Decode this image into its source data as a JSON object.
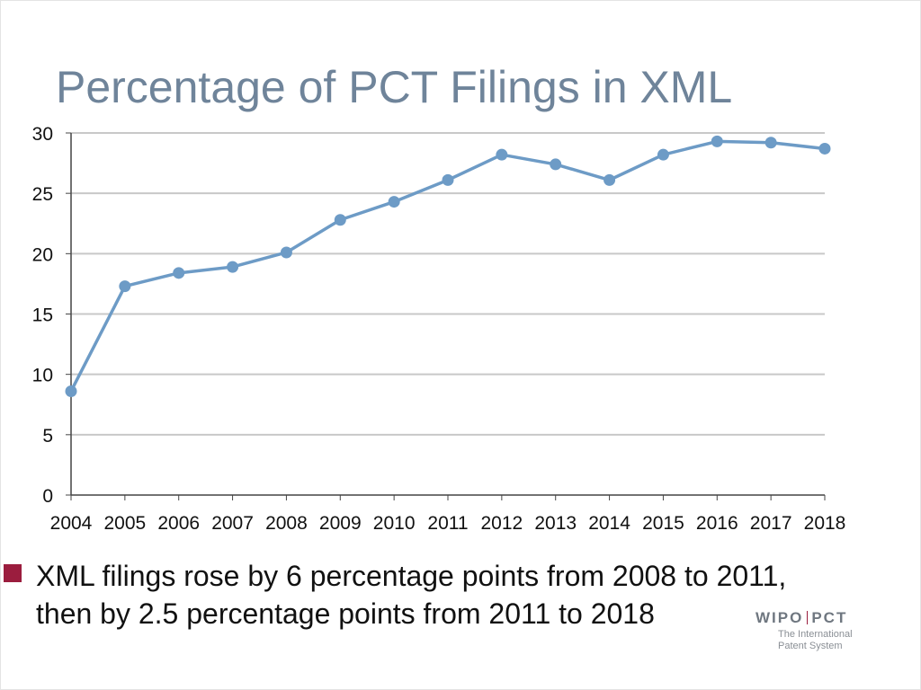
{
  "title": "Percentage of PCT Filings in XML",
  "chart_data": {
    "type": "line",
    "title": "Percentage of PCT Filings in XML",
    "categories": [
      "2004",
      "2005",
      "2006",
      "2007",
      "2008",
      "2009",
      "2010",
      "2011",
      "2012",
      "2013",
      "2014",
      "2015",
      "2016",
      "2017",
      "2018"
    ],
    "series": [
      {
        "values": [
          8.6,
          17.3,
          18.4,
          18.9,
          20.1,
          22.8,
          24.3,
          26.1,
          28.2,
          27.4,
          26.1,
          28.2,
          29.3,
          29.2,
          28.7
        ]
      }
    ],
    "ylim": [
      0,
      30
    ],
    "yticks": [
      0,
      5,
      10,
      15,
      20,
      25,
      30
    ],
    "grid": true,
    "line_color": "#6d9bc6"
  },
  "bullet": {
    "text_line1": "XML filings rose by 6 percentage points from 2008 to 2011,",
    "text_line2": "then by 2.5 percentage points from 2011 to 2018"
  },
  "logo": {
    "part1": "WIPO",
    "part2": "PCT",
    "sub1": "The International",
    "sub2": "Patent System"
  }
}
